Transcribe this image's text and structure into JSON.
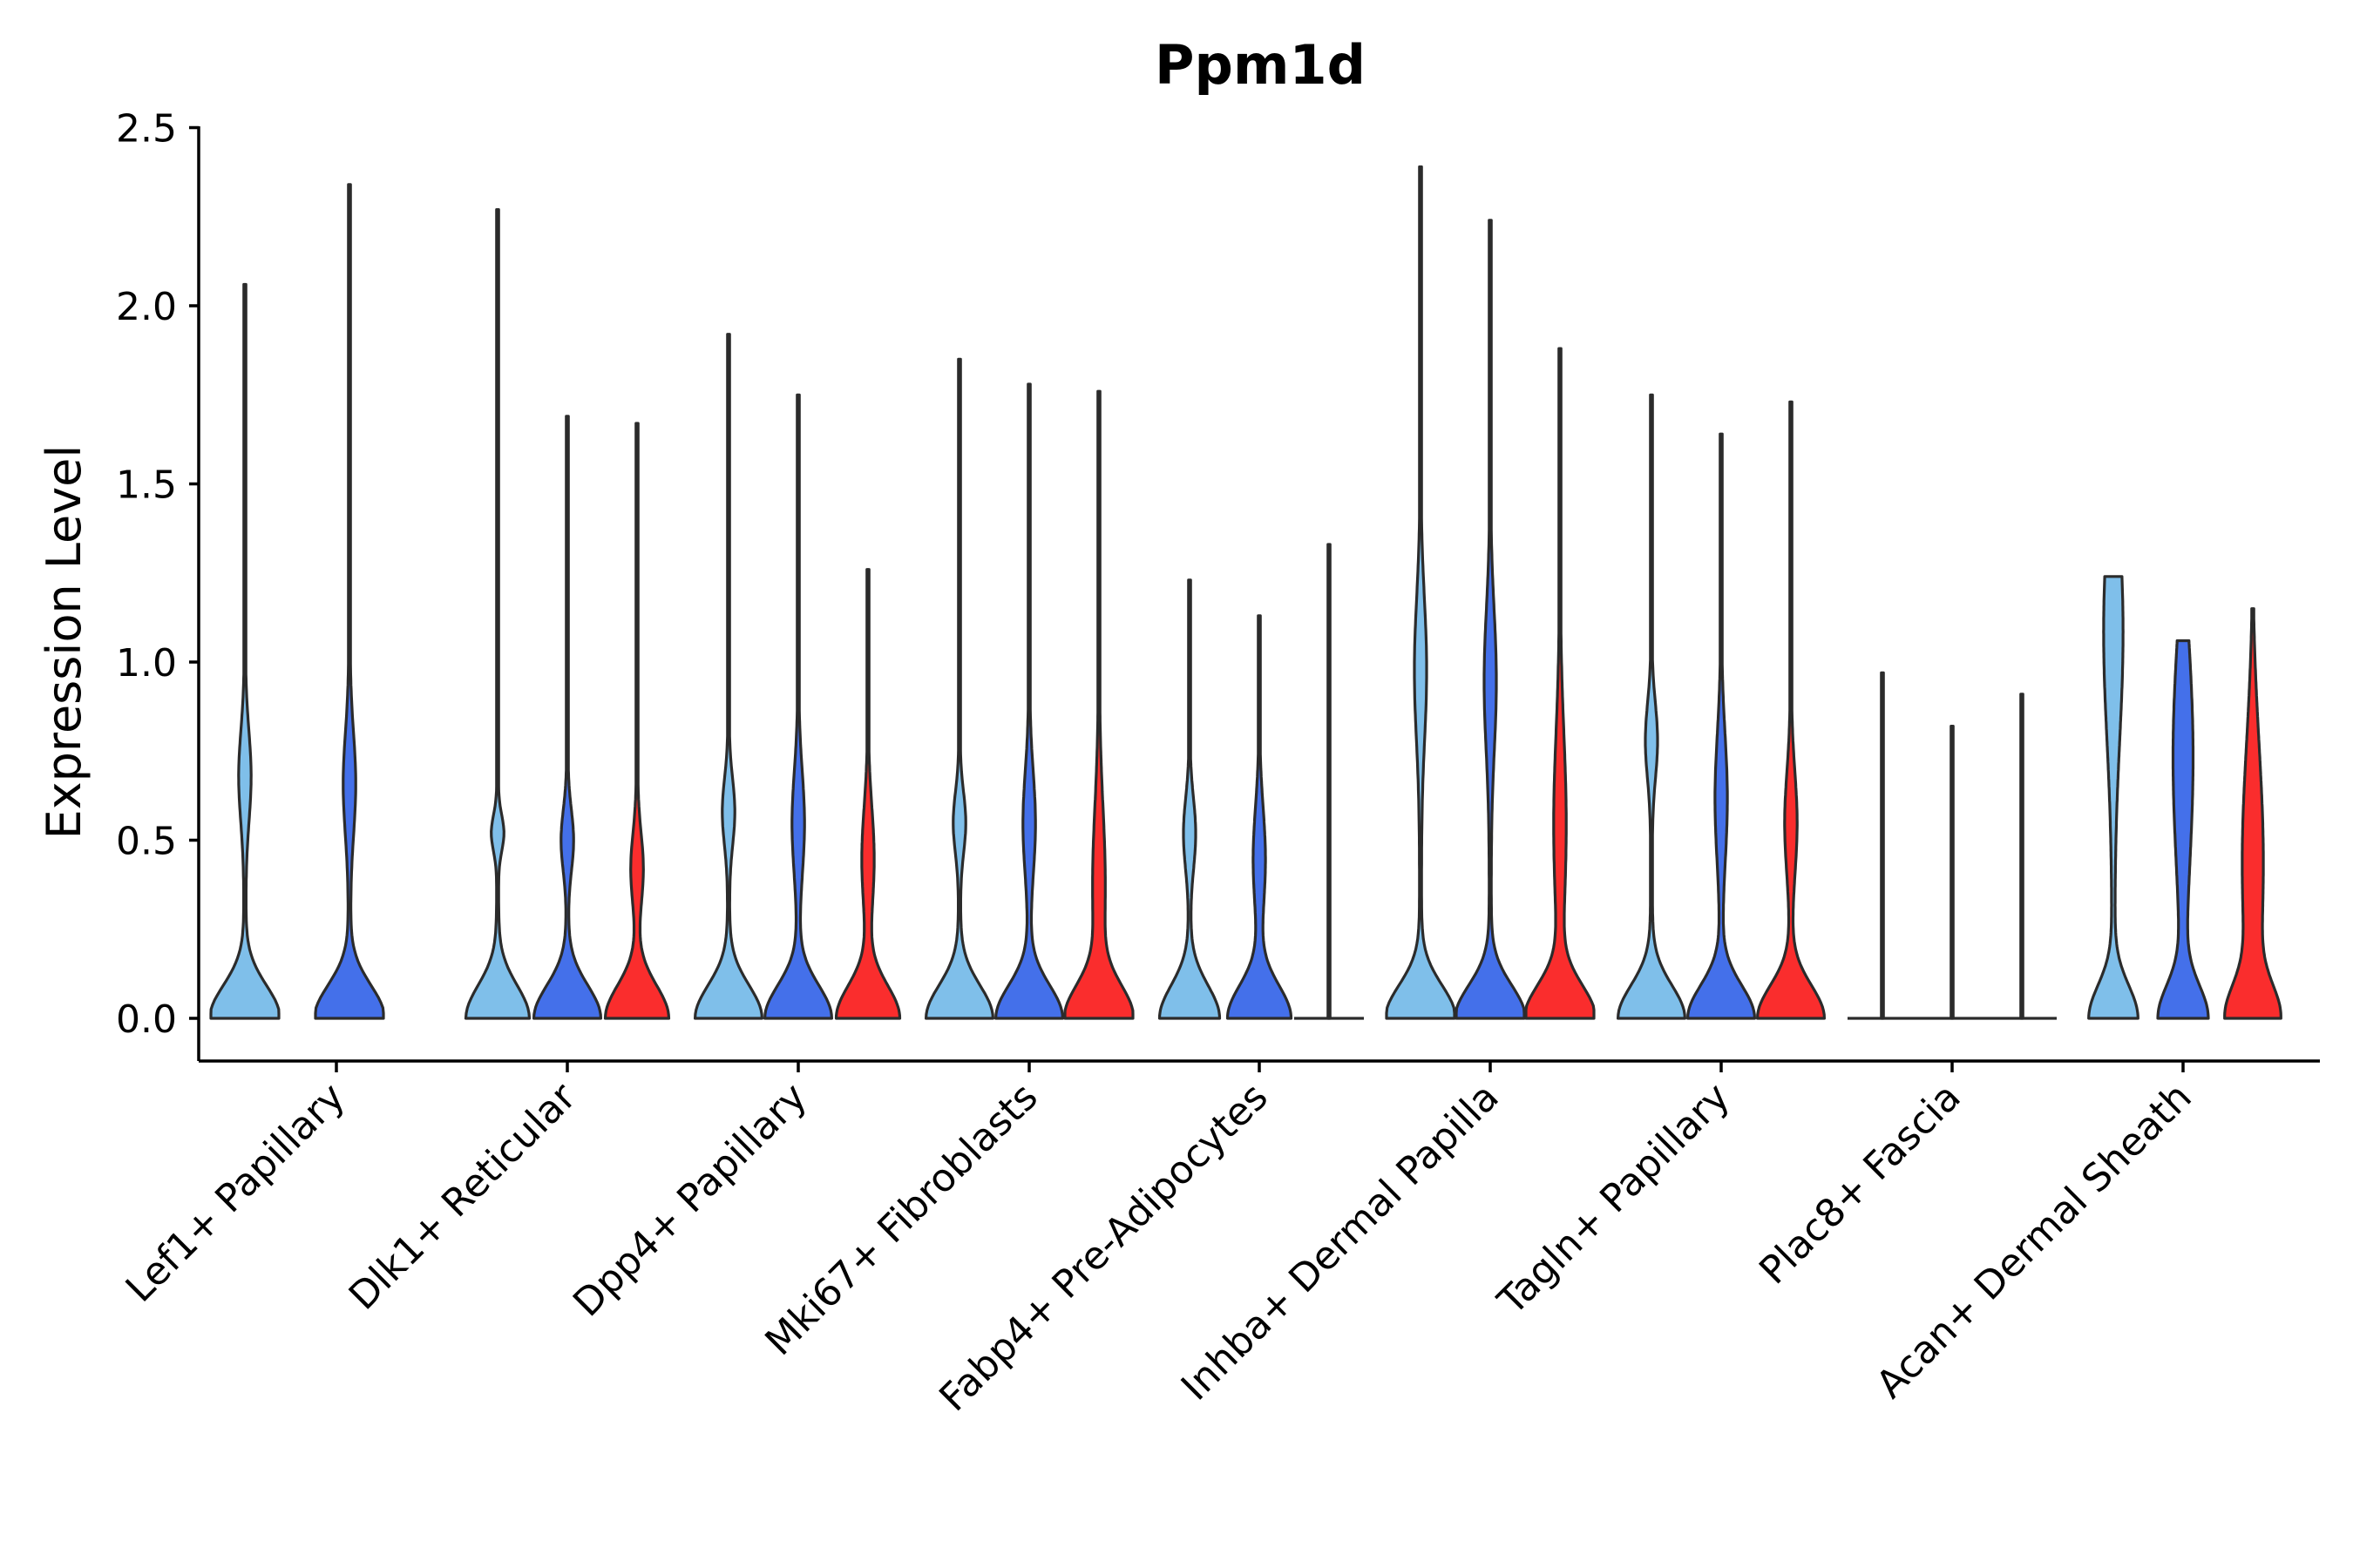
{
  "chart_data": {
    "type": "violin",
    "title": "Ppm1d",
    "xlabel": "",
    "ylabel": "Expression Level",
    "ylim": [
      -0.12,
      2.5
    ],
    "yticks": [
      "0.0",
      "0.5",
      "1.0",
      "1.5",
      "2.0",
      "2.5"
    ],
    "ytick_values": [
      0,
      0.5,
      1.0,
      1.5,
      2.0,
      2.5
    ],
    "grid": false,
    "legend": "none",
    "series_colors": [
      "#7fbfea",
      "#4470ea",
      "#fa2d2d"
    ],
    "categories": [
      "Lef1+ Papillary",
      "Dlk1+ Reticular",
      "Dpp4+ Papillary",
      "Mki67+ Fibroblasts",
      "Fabp4+ Pre-Adipocytes",
      "Inhba+ Dermal Papilla",
      "Tagln+ Papillary",
      "Plac8+ Fascia",
      "Acan+ Dermal Sheath"
    ],
    "groups": [
      {
        "category": "Lef1+ Papillary",
        "violins": [
          {
            "series": 0,
            "max": 2.06,
            "shape": "bimodal",
            "base": 1.0,
            "mode": 0.68,
            "mode_width": 0.18
          },
          {
            "series": 1,
            "max": 2.34,
            "shape": "bimodal",
            "base": 1.0,
            "mode": 0.66,
            "mode_width": 0.2
          }
        ]
      },
      {
        "category": "Dlk1+ Reticular",
        "violins": [
          {
            "series": 0,
            "max": 2.27,
            "shape": "bimodal",
            "base": 0.9,
            "mode": 0.52,
            "mode_width": 0.07
          },
          {
            "series": 1,
            "max": 1.69,
            "shape": "bimodal",
            "base": 0.95,
            "mode": 0.5,
            "mode_width": 0.12
          },
          {
            "series": 2,
            "max": 1.67,
            "shape": "bimodal",
            "base": 0.9,
            "mode": 0.42,
            "mode_width": 0.14
          }
        ]
      },
      {
        "category": "Dpp4+ Papillary",
        "violins": [
          {
            "series": 0,
            "max": 1.92,
            "shape": "bimodal",
            "base": 0.95,
            "mode": 0.58,
            "mode_width": 0.13
          },
          {
            "series": 1,
            "max": 1.75,
            "shape": "bimodal",
            "base": 0.95,
            "mode": 0.55,
            "mode_width": 0.2
          },
          {
            "series": 2,
            "max": 1.26,
            "shape": "bimodal",
            "base": 0.9,
            "mode": 0.45,
            "mode_width": 0.2
          }
        ]
      },
      {
        "category": "Mki67+ Fibroblasts",
        "violins": [
          {
            "series": 0,
            "max": 1.85,
            "shape": "bimodal",
            "base": 0.95,
            "mode": 0.55,
            "mode_width": 0.12
          },
          {
            "series": 1,
            "max": 1.78,
            "shape": "bimodal",
            "base": 0.95,
            "mode": 0.55,
            "mode_width": 0.2
          },
          {
            "series": 2,
            "max": 1.76,
            "shape": "bimodal",
            "base": 0.95,
            "mode": 0.38,
            "mode_width": 0.3
          }
        ]
      },
      {
        "category": "Fabp4+ Pre-Adipocytes",
        "violins": [
          {
            "series": 0,
            "max": 1.23,
            "shape": "bimodal",
            "base": 0.85,
            "mode": 0.52,
            "mode_width": 0.14
          },
          {
            "series": 1,
            "max": 1.13,
            "shape": "bimodal",
            "base": 0.9,
            "mode": 0.45,
            "mode_width": 0.2
          },
          {
            "series": 2,
            "max": 1.33,
            "shape": "flat"
          }
        ]
      },
      {
        "category": "Inhba+ Dermal Papilla",
        "violins": [
          {
            "series": 0,
            "max": 2.39,
            "shape": "bimodal",
            "base": 1.0,
            "mode": 0.98,
            "mode_width": 0.28
          },
          {
            "series": 1,
            "max": 2.24,
            "shape": "bimodal",
            "base": 1.0,
            "mode": 0.95,
            "mode_width": 0.28
          },
          {
            "series": 2,
            "max": 1.88,
            "shape": "bimodal",
            "base": 1.0,
            "mode": 0.55,
            "mode_width": 0.35
          }
        ]
      },
      {
        "category": "Tagln+ Papillary",
        "violins": [
          {
            "series": 0,
            "max": 1.75,
            "shape": "bimodal",
            "base": 0.95,
            "mode": 0.78,
            "mode_width": 0.15
          },
          {
            "series": 1,
            "max": 1.64,
            "shape": "bimodal",
            "base": 0.95,
            "mode": 0.62,
            "mode_width": 0.25
          },
          {
            "series": 2,
            "max": 1.73,
            "shape": "bimodal",
            "base": 0.95,
            "mode": 0.55,
            "mode_width": 0.2
          }
        ]
      },
      {
        "category": "Plac8+ Fascia",
        "violins": [
          {
            "series": 0,
            "max": 0.97,
            "shape": "flat"
          },
          {
            "series": 1,
            "max": 0.82,
            "shape": "flat"
          },
          {
            "series": 2,
            "max": 0.91,
            "shape": "flat"
          }
        ]
      },
      {
        "category": "Acan+ Dermal Sheath",
        "violins": [
          {
            "series": 0,
            "max": 1.24,
            "shape": "wide",
            "base": 1.0,
            "mode": 1.1,
            "mode_width": 0.3
          },
          {
            "series": 1,
            "max": 1.06,
            "shape": "wide",
            "base": 1.0,
            "mode": 0.75,
            "mode_width": 0.3
          },
          {
            "series": 2,
            "max": 1.15,
            "shape": "wide",
            "base": 1.0,
            "mode": 0.45,
            "mode_width": 0.3
          }
        ]
      }
    ]
  }
}
